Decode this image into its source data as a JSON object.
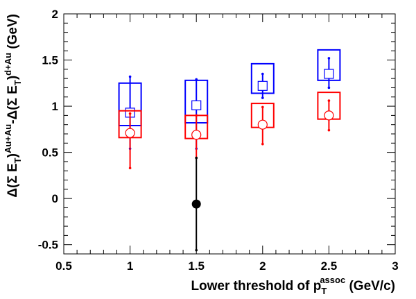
{
  "chart_data": {
    "type": "scatter",
    "title": "",
    "xlabel": {
      "main": "Lower threshold of p",
      "sub": "T",
      "sup": "assoc",
      "tail": " (GeV/c)"
    },
    "ylabel": {
      "p1": "Δ(Σ E",
      "sub1": "T",
      "p2": ")",
      "sup1": "Au+Au",
      "p3": "-Δ(Σ E",
      "sub2": "T",
      "p4": ")",
      "sup2": "d+Au",
      "p5": " (GeV)"
    },
    "xlim": [
      0.5,
      3
    ],
    "ylim": [
      -0.6,
      2
    ],
    "x_ticks": [
      "0.5",
      "1",
      "1.5",
      "2",
      "2.5",
      "3"
    ],
    "y_ticks": [
      "-0.5",
      "0",
      "0.5",
      "1",
      "1.5",
      "2"
    ],
    "grid": false,
    "series": [
      {
        "marker": "open-square",
        "color": "#0000ff",
        "points": [
          {
            "x": 1.0,
            "y": 0.93,
            "stat_err": [
              0.39,
              0.39
            ],
            "sys_box": [
              0.79,
              1.25
            ]
          },
          {
            "x": 1.5,
            "y": 1.01,
            "stat_err": [
              0.47,
              0.28
            ],
            "sys_box": [
              0.82,
              1.28
            ]
          },
          {
            "x": 2.0,
            "y": 1.22,
            "stat_err": [
              0.13,
              0.13
            ],
            "sys_box": [
              1.14,
              1.46
            ]
          },
          {
            "x": 2.5,
            "y": 1.35,
            "stat_err": [
              0.15,
              0.17
            ],
            "sys_box": [
              1.28,
              1.61
            ]
          }
        ]
      },
      {
        "marker": "open-circle",
        "color": "#ff0000",
        "points": [
          {
            "x": 1.0,
            "y": 0.71,
            "stat_err": [
              0.38,
              0.21
            ],
            "sys_box": [
              0.66,
              0.95
            ]
          },
          {
            "x": 1.5,
            "y": 0.69,
            "stat_err": [
              0.25,
              0.21
            ],
            "sys_box": [
              0.65,
              0.9
            ]
          },
          {
            "x": 2.0,
            "y": 0.8,
            "stat_err": [
              0.21,
              0.19
            ],
            "sys_box": [
              0.77,
              1.03
            ]
          },
          {
            "x": 2.5,
            "y": 0.9,
            "stat_err": [
              0.16,
              0.16
            ],
            "sys_box": [
              0.86,
              1.15
            ]
          }
        ]
      },
      {
        "marker": "filled-circle",
        "color": "#000000",
        "points": [
          {
            "x": 1.5,
            "y": -0.06,
            "stat_err": [
              0.5,
              0.5
            ],
            "sys_box": null
          }
        ]
      }
    ]
  }
}
